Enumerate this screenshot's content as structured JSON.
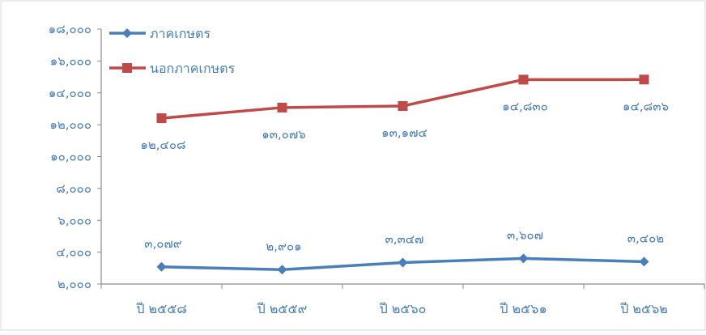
{
  "chart_data": {
    "type": "line",
    "categories": [
      "ปี ๒๕๕๘",
      "ปี ๒๕๕๙",
      "ปี ๒๕๖๐",
      "ปี ๒๕๖๑",
      "ปี ๒๕๖๒"
    ],
    "series": [
      {
        "name": "ภาคเกษตร",
        "color": "#4a7ebb",
        "marker": "diamond",
        "values": [
          3079,
          2901,
          3347,
          3607,
          3402
        ],
        "labels": [
          "๓,๐๗๙",
          "๒,๙๐๑",
          "๓,๓๔๗",
          "๓,๖๐๗",
          "๓,๔๐๒"
        ]
      },
      {
        "name": "นอกภาคเกษตร",
        "color": "#be4b48",
        "marker": "square",
        "values": [
          12408,
          13076,
          13174,
          14830,
          14836
        ],
        "labels": [
          "๑๒,๔๐๘",
          "๑๓,๐๗๖",
          "๑๓,๑๗๔",
          "๑๔,๘๓๐",
          "๑๔,๘๓๖"
        ]
      }
    ],
    "ylim": [
      2000,
      18000
    ],
    "yticks": [
      2000,
      4000,
      6000,
      8000,
      10000,
      12000,
      14000,
      16000,
      18000
    ],
    "ytick_labels": [
      "๒,๐๐๐",
      "๔,๐๐๐",
      "๖,๐๐๐",
      "๘,๐๐๐",
      "๑๐,๐๐๐",
      "๑๒,๐๐๐",
      "๑๔,๐๐๐",
      "๑๖,๐๐๐",
      "๑๘,๐๐๐"
    ],
    "grid": false,
    "legend_position": "top-left",
    "axis_color": "#8c8c8c",
    "text_color": "#4a7fb5"
  }
}
